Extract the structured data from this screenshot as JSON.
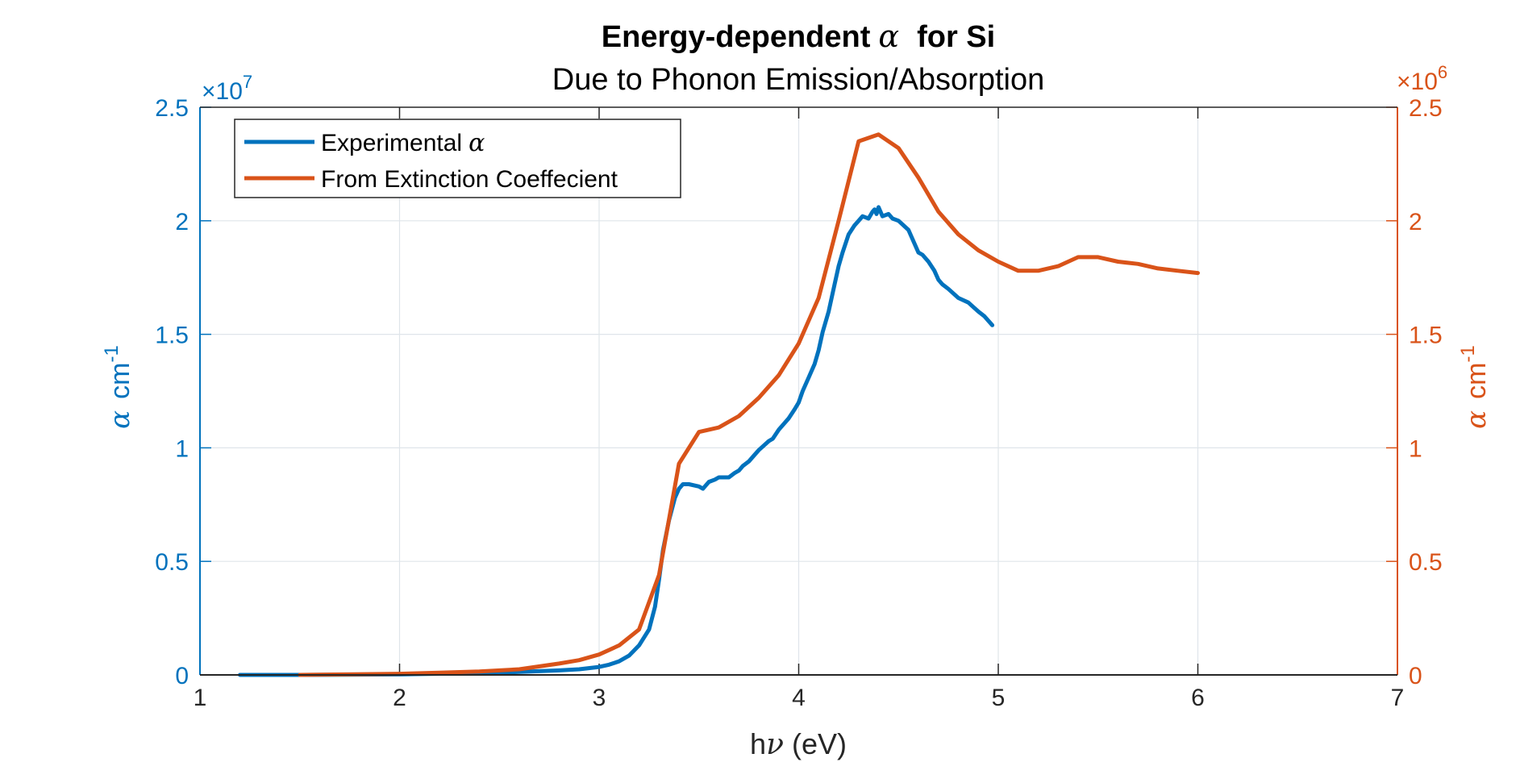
{
  "chart_data": {
    "type": "line",
    "title": "Energy-dependent",
    "title_symbol": "α",
    "title_suffix": "for Si",
    "subtitle": "Due to Phonon Emission/Absorption",
    "xlabel_prefix": "h",
    "xlabel_symbol": "ν",
    "xlabel_suffix": " (eV)",
    "ylabel_left_symbol": "α",
    "ylabel_left_unit": "cm",
    "ylabel_left_exp": "-1",
    "ylabel_right_symbol": "α",
    "ylabel_right_unit": "cm",
    "ylabel_right_exp": "-1",
    "left_exponent_times": "×10",
    "left_exponent_power": "7",
    "right_exponent_times": "×10",
    "right_exponent_power": "6",
    "xlim": [
      1,
      7
    ],
    "ylim_left": [
      0,
      2.5
    ],
    "ylim_right": [
      0,
      2.5
    ],
    "xticks": [
      "1",
      "2",
      "3",
      "4",
      "5",
      "6",
      "7"
    ],
    "yticks_left": [
      "0",
      "0.5",
      "1",
      "1.5",
      "2",
      "2.5"
    ],
    "yticks_right": [
      "0",
      "0.5",
      "1",
      "1.5",
      "2",
      "2.5"
    ],
    "grid": true,
    "legend_position": "top-left",
    "series": [
      {
        "name": "Experimental",
        "name_symbol": "α",
        "axis": "left",
        "color": "#0072BD",
        "x": [
          1.2,
          1.5,
          2.0,
          2.5,
          2.8,
          2.9,
          3.0,
          3.05,
          3.1,
          3.15,
          3.2,
          3.25,
          3.28,
          3.3,
          3.32,
          3.35,
          3.38,
          3.4,
          3.42,
          3.45,
          3.5,
          3.52,
          3.55,
          3.58,
          3.6,
          3.65,
          3.68,
          3.7,
          3.72,
          3.75,
          3.78,
          3.8,
          3.85,
          3.87,
          3.9,
          3.92,
          3.95,
          3.98,
          4.0,
          4.02,
          4.05,
          4.08,
          4.1,
          4.12,
          4.15,
          4.18,
          4.2,
          4.22,
          4.25,
          4.28,
          4.3,
          4.32,
          4.35,
          4.37,
          4.38,
          4.39,
          4.4,
          4.42,
          4.45,
          4.47,
          4.5,
          4.55,
          4.6,
          4.62,
          4.65,
          4.68,
          4.7,
          4.72,
          4.75,
          4.8,
          4.85,
          4.9,
          4.93,
          4.95,
          4.97
        ],
        "y": [
          0.0,
          0.0,
          0.002,
          0.01,
          0.02,
          0.025,
          0.035,
          0.045,
          0.06,
          0.085,
          0.13,
          0.2,
          0.3,
          0.42,
          0.55,
          0.68,
          0.78,
          0.82,
          0.84,
          0.84,
          0.83,
          0.82,
          0.85,
          0.86,
          0.87,
          0.87,
          0.89,
          0.9,
          0.92,
          0.94,
          0.97,
          0.99,
          1.03,
          1.04,
          1.08,
          1.1,
          1.13,
          1.17,
          1.2,
          1.25,
          1.31,
          1.37,
          1.43,
          1.51,
          1.6,
          1.72,
          1.8,
          1.86,
          1.94,
          1.98,
          2.0,
          2.02,
          2.01,
          2.04,
          2.05,
          2.03,
          2.06,
          2.02,
          2.03,
          2.01,
          2.0,
          1.96,
          1.86,
          1.85,
          1.82,
          1.78,
          1.74,
          1.72,
          1.7,
          1.66,
          1.64,
          1.6,
          1.58,
          1.56,
          1.54
        ]
      },
      {
        "name": "From Extinction Coeffecient",
        "axis": "right",
        "color": "#D95319",
        "x": [
          1.5,
          2.0,
          2.2,
          2.4,
          2.6,
          2.8,
          2.9,
          3.0,
          3.1,
          3.2,
          3.3,
          3.4,
          3.5,
          3.6,
          3.7,
          3.8,
          3.9,
          4.0,
          4.1,
          4.2,
          4.3,
          4.4,
          4.5,
          4.6,
          4.7,
          4.8,
          4.9,
          5.0,
          5.1,
          5.2,
          5.3,
          5.4,
          5.5,
          5.6,
          5.7,
          5.8,
          5.9,
          6.0
        ],
        "y": [
          0.0,
          0.005,
          0.01,
          0.015,
          0.025,
          0.05,
          0.065,
          0.09,
          0.13,
          0.2,
          0.44,
          0.93,
          1.07,
          1.09,
          1.14,
          1.22,
          1.32,
          1.46,
          1.66,
          2.0,
          2.35,
          2.38,
          2.32,
          2.19,
          2.04,
          1.94,
          1.87,
          1.82,
          1.78,
          1.78,
          1.8,
          1.84,
          1.84,
          1.82,
          1.81,
          1.79,
          1.78,
          1.77
        ]
      }
    ]
  }
}
